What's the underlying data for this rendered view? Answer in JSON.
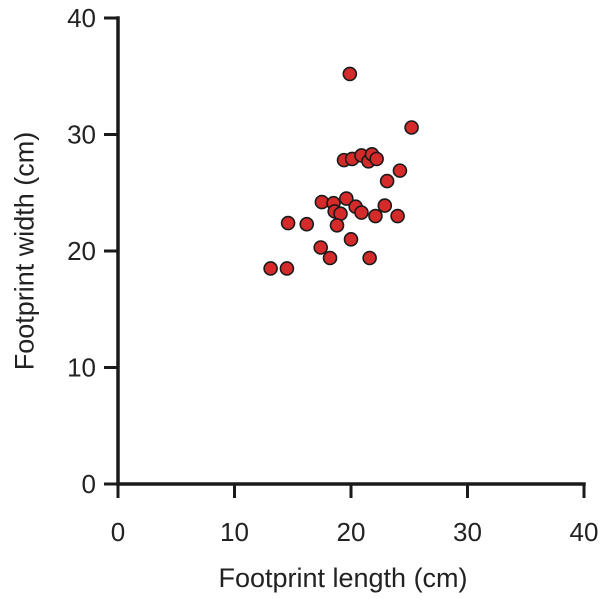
{
  "chart_data": {
    "type": "scatter",
    "title": "",
    "xlabel": "Footprint length (cm)",
    "ylabel": "Footprint width (cm)",
    "xlim": [
      0,
      40
    ],
    "ylim": [
      0,
      40
    ],
    "x_ticks": [
      0,
      10,
      20,
      30,
      40
    ],
    "y_ticks": [
      0,
      10,
      20,
      30,
      40
    ],
    "x_tick_labels": [
      "0",
      "10",
      "20",
      "30",
      "40"
    ],
    "y_tick_labels": [
      "0",
      "10",
      "20",
      "30",
      "40"
    ],
    "grid": false,
    "legend": "none",
    "marker_color": "#d42a2a",
    "marker_edge_color": "#1a1a1a",
    "series": [
      {
        "points": [
          {
            "x": 19.9,
            "y": 35.2
          },
          {
            "x": 25.2,
            "y": 30.6
          },
          {
            "x": 19.4,
            "y": 27.8
          },
          {
            "x": 20.1,
            "y": 27.9
          },
          {
            "x": 20.9,
            "y": 28.2
          },
          {
            "x": 21.5,
            "y": 27.7
          },
          {
            "x": 21.8,
            "y": 28.3
          },
          {
            "x": 22.2,
            "y": 27.9
          },
          {
            "x": 23.1,
            "y": 26.0
          },
          {
            "x": 24.2,
            "y": 26.9
          },
          {
            "x": 17.5,
            "y": 24.2
          },
          {
            "x": 18.5,
            "y": 24.1
          },
          {
            "x": 19.6,
            "y": 24.5
          },
          {
            "x": 18.6,
            "y": 23.4
          },
          {
            "x": 19.1,
            "y": 23.2
          },
          {
            "x": 20.4,
            "y": 23.8
          },
          {
            "x": 20.9,
            "y": 23.3
          },
          {
            "x": 22.1,
            "y": 23.0
          },
          {
            "x": 22.9,
            "y": 23.9
          },
          {
            "x": 24.0,
            "y": 23.0
          },
          {
            "x": 14.6,
            "y": 22.4
          },
          {
            "x": 16.2,
            "y": 22.3
          },
          {
            "x": 18.8,
            "y": 22.2
          },
          {
            "x": 17.4,
            "y": 20.3
          },
          {
            "x": 20.0,
            "y": 21.0
          },
          {
            "x": 18.2,
            "y": 19.4
          },
          {
            "x": 21.6,
            "y": 19.4
          },
          {
            "x": 13.1,
            "y": 18.5
          },
          {
            "x": 14.5,
            "y": 18.5
          }
        ]
      }
    ]
  }
}
